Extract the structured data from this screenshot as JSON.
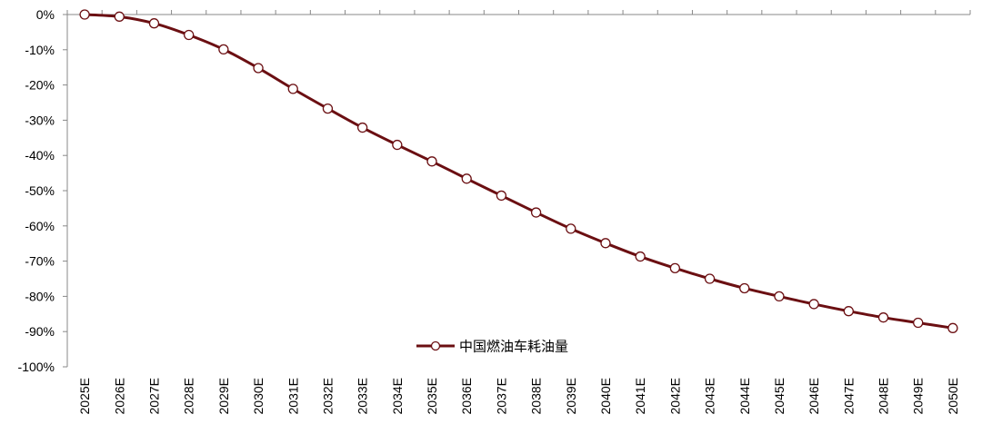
{
  "chart_data": {
    "type": "line",
    "title": "",
    "xlabel": "",
    "ylabel": "",
    "categories": [
      "2025E",
      "2026E",
      "2027E",
      "2028E",
      "2029E",
      "2030E",
      "2031E",
      "2032E",
      "2033E",
      "2034E",
      "2035E",
      "2036E",
      "2037E",
      "2038E",
      "2039E",
      "2040E",
      "2041E",
      "2042E",
      "2043E",
      "2044E",
      "2045E",
      "2046E",
      "2047E",
      "2048E",
      "2049E",
      "2050E"
    ],
    "series": [
      {
        "name": "中国燃油车耗油量",
        "color": "#6B0F12",
        "values": [
          0,
          -0.6,
          -2.5,
          -5.8,
          -9.9,
          -15.2,
          -21.1,
          -26.7,
          -32.1,
          -37.0,
          -41.7,
          -46.6,
          -51.4,
          -56.2,
          -60.8,
          -64.9,
          -68.7,
          -72.0,
          -75.0,
          -77.7,
          -80.0,
          -82.2,
          -84.2,
          -86.0,
          -87.5,
          -89.0
        ]
      }
    ],
    "ylim": [
      -100,
      0
    ],
    "yticks": [
      "0%",
      "-10%",
      "-20%",
      "-30%",
      "-40%",
      "-50%",
      "-60%",
      "-70%",
      "-80%",
      "-90%",
      "-100%"
    ],
    "grid": false,
    "legend_position": "bottom-center",
    "marker": "open-circle"
  }
}
